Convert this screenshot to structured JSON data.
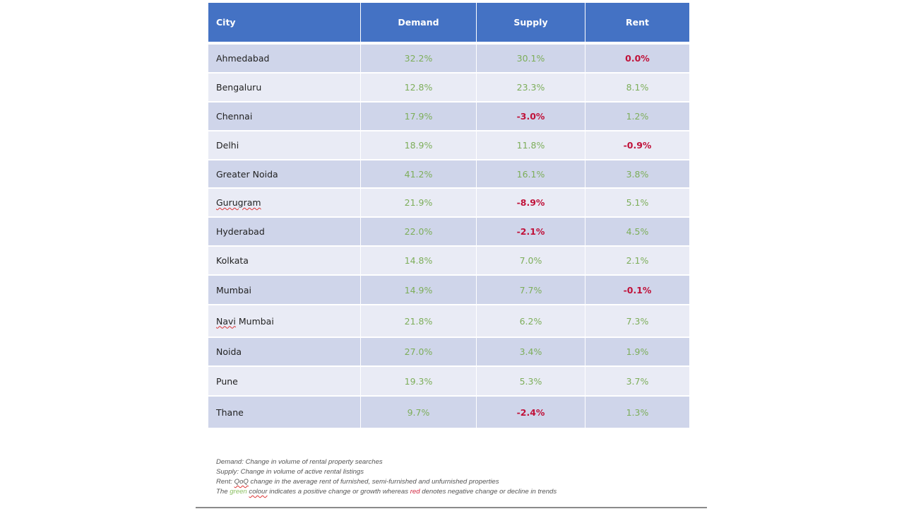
{
  "table": {
    "headers": [
      "City",
      "Demand",
      "Supply",
      "Rent"
    ],
    "rows": [
      {
        "city": "Ahmedabad",
        "demand": "32.2%",
        "supply": "30.1%",
        "rent": "0.0%",
        "demand_sign": "pos",
        "supply_sign": "pos",
        "rent_sign": "neg"
      },
      {
        "city": "Bengaluru",
        "demand": "12.8%",
        "supply": "23.3%",
        "rent": "8.1%",
        "demand_sign": "pos",
        "supply_sign": "pos",
        "rent_sign": "pos"
      },
      {
        "city": "Chennai",
        "demand": "17.9%",
        "supply": "-3.0%",
        "rent": "1.2%",
        "demand_sign": "pos",
        "supply_sign": "neg",
        "rent_sign": "pos"
      },
      {
        "city": "Delhi",
        "demand": "18.9%",
        "supply": "11.8%",
        "rent": "-0.9%",
        "demand_sign": "pos",
        "supply_sign": "pos",
        "rent_sign": "neg"
      },
      {
        "city": "Greater Noida",
        "demand": "41.2%",
        "supply": "16.1%",
        "rent": "3.8%",
        "demand_sign": "pos",
        "supply_sign": "pos",
        "rent_sign": "pos"
      },
      {
        "city": "Gurugram",
        "demand": "21.9%",
        "supply": "-8.9%",
        "rent": "5.1%",
        "demand_sign": "pos",
        "supply_sign": "neg",
        "rent_sign": "pos"
      },
      {
        "city": "Hyderabad",
        "demand": "22.0%",
        "supply": "-2.1%",
        "rent": "4.5%",
        "demand_sign": "pos",
        "supply_sign": "neg",
        "rent_sign": "pos"
      },
      {
        "city": "Kolkata",
        "demand": "14.8%",
        "supply": "7.0%",
        "rent": "2.1%",
        "demand_sign": "pos",
        "supply_sign": "pos",
        "rent_sign": "pos"
      },
      {
        "city": "Mumbai",
        "demand": "14.9%",
        "supply": "7.7%",
        "rent": "-0.1%",
        "demand_sign": "pos",
        "supply_sign": "pos",
        "rent_sign": "neg"
      },
      {
        "city": "Navi Mumbai",
        "demand": "21.8%",
        "supply": "6.2%",
        "rent": "7.3%",
        "demand_sign": "pos",
        "supply_sign": "pos",
        "rent_sign": "pos"
      },
      {
        "city": "Noida",
        "demand": "27.0%",
        "supply": "3.4%",
        "rent": "1.9%",
        "demand_sign": "pos",
        "supply_sign": "pos",
        "rent_sign": "pos"
      },
      {
        "city": "Pune",
        "demand": "19.3%",
        "supply": "5.3%",
        "rent": "3.7%",
        "demand_sign": "pos",
        "supply_sign": "pos",
        "rent_sign": "pos"
      },
      {
        "city": "Thane",
        "demand": "9.7%",
        "supply": "-2.4%",
        "rent": "1.3%",
        "demand_sign": "pos",
        "supply_sign": "neg",
        "rent_sign": "pos"
      }
    ]
  },
  "notes": {
    "demand": "Demand: Change in volume of rental property searches",
    "supply": "Supply: Change in volume of active rental listings",
    "rent_prefix": "Rent: ",
    "rent_qoq": "QoQ",
    "rent_rest": " change in the average rent of furnished, semi-furnished and unfurnished properties",
    "legend_the": "The ",
    "legend_green": "green",
    "legend_space": " ",
    "legend_colour": "colour",
    "legend_mid": " indicates a positive change or growth whereas ",
    "legend_red": "red",
    "legend_end": " denotes negative change or decline in trends"
  },
  "colors": {
    "header_bg": "#4472C4",
    "band_dark": "#CFD5EA",
    "band_light": "#E9EBF5",
    "positive": "#7DAE5A",
    "negative": "#C0123A"
  }
}
